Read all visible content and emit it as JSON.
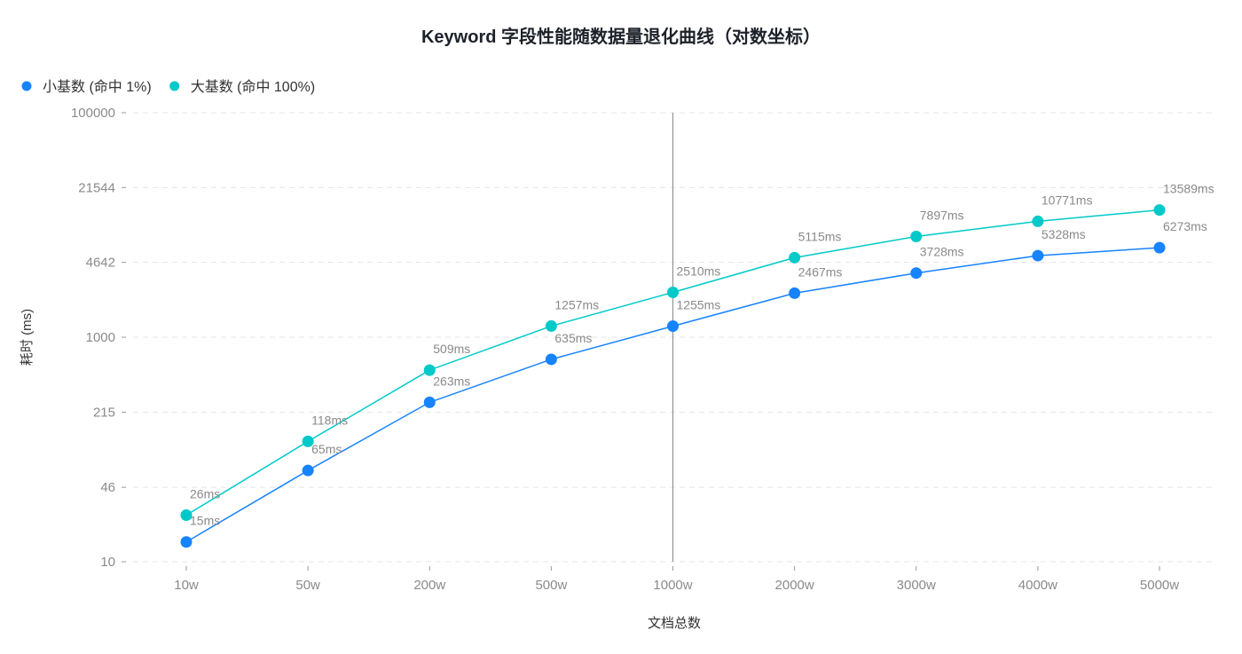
{
  "chart_data": {
    "type": "line",
    "title": "Keyword 字段性能随数据量退化曲线（对数坐标）",
    "xlabel": "文档总数",
    "ylabel": "耗时 (ms)",
    "yscale": "log",
    "ylim": [
      10,
      100000
    ],
    "yticks": [
      "10",
      "46",
      "215",
      "1000",
      "4642",
      "21544",
      "100000"
    ],
    "categories": [
      "10w",
      "50w",
      "200w",
      "500w",
      "1000w",
      "2000w",
      "3000w",
      "4000w",
      "5000w"
    ],
    "legend_position": "top-left",
    "grid": "horizontal dashed",
    "highlight_category": "1000w",
    "series": [
      {
        "name": "小基数 (命中 1%)",
        "color": "#1783FF",
        "values": [
          15,
          65,
          263,
          635,
          1255,
          2467,
          3728,
          5328,
          6273
        ]
      },
      {
        "name": "大基数 (命中 100%)",
        "color": "#00C9C9",
        "values": [
          26,
          118,
          509,
          1257,
          2510,
          5115,
          7897,
          10771,
          13589
        ]
      }
    ],
    "label_suffix": "ms"
  }
}
